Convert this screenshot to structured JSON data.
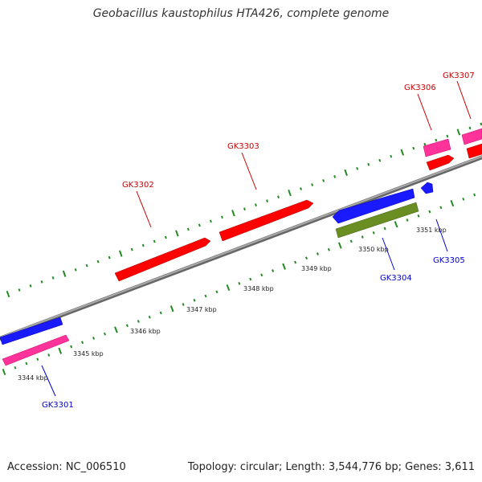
{
  "title": "Geobacillus kaustophilus HTA426, complete genome",
  "footer": {
    "accession": "Accession: NC_006510",
    "summary": "Topology: circular; Length: 3,544,776 bp; Genes: 3,611"
  },
  "colors": {
    "forward_gene": "#ff0000",
    "reverse_gene": "#0000ff",
    "pink_gene": "#ff3399",
    "olive_gene": "#6b8e23",
    "forward_label": "#cc0000",
    "reverse_label": "#0000cc",
    "tick": "#228b22",
    "backbone": "#888888"
  },
  "ticks": [
    {
      "label": "3344 kbp"
    },
    {
      "label": "3345 kbp"
    },
    {
      "label": "3346 kbp"
    },
    {
      "label": "3347 kbp"
    },
    {
      "label": "3348 kbp"
    },
    {
      "label": "3349 kbp"
    },
    {
      "label": "3350 kbp"
    },
    {
      "label": "3351 kbp"
    }
  ],
  "genes": [
    {
      "name": "GK3301",
      "strand": "reverse",
      "color": "pink_gene"
    },
    {
      "name": "GK3302",
      "strand": "forward",
      "color": "forward_gene"
    },
    {
      "name": "GK3303",
      "strand": "forward",
      "color": "forward_gene"
    },
    {
      "name": "GK3304",
      "strand": "reverse",
      "color": "olive_gene"
    },
    {
      "name": "GK3305",
      "strand": "reverse",
      "color": "reverse_gene"
    },
    {
      "name": "GK3306",
      "strand": "forward",
      "color": "pink_gene"
    },
    {
      "name": "GK3307",
      "strand": "forward",
      "color": "pink_gene"
    }
  ]
}
